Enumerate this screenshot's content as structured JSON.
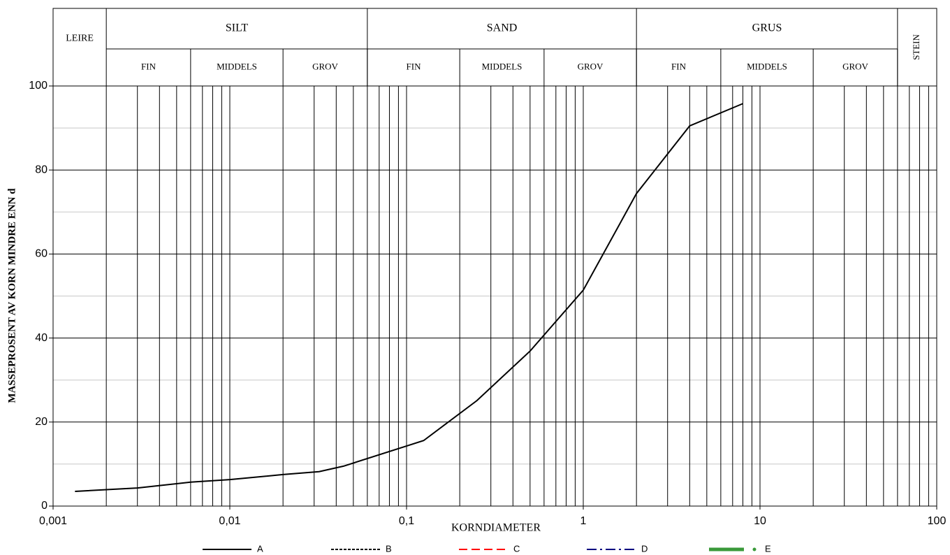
{
  "chart_data": {
    "type": "line",
    "y_label": "MASSEPROSENT AV KORN MINDRE ENN d",
    "x_label": "KORNDIAMETER",
    "log_x": true,
    "xlim": [
      0.001,
      100
    ],
    "xticks": [
      {
        "value": 0.001,
        "label": "0,001"
      },
      {
        "value": 0.01,
        "label": "0,01"
      },
      {
        "value": 0.1,
        "label": "0,1"
      },
      1,
      10,
      100
    ],
    "ylim": [
      0,
      100
    ],
    "yticks": [
      0,
      20,
      40,
      60,
      80,
      100
    ],
    "grid": true,
    "legend": "bottom",
    "classes": [
      {
        "name": "LEIRE",
        "from": 0.001,
        "to": 0.002,
        "sub": []
      },
      {
        "name": "SILT",
        "from": 0.002,
        "to": 0.06,
        "sub": [
          {
            "name": "FIN",
            "to": 0.006
          },
          {
            "name": "MIDDELS",
            "to": 0.02
          },
          {
            "name": "GROV",
            "to": 0.06
          }
        ]
      },
      {
        "name": "SAND",
        "from": 0.06,
        "to": 2,
        "sub": [
          {
            "name": "FIN",
            "to": 0.2
          },
          {
            "name": "MIDDELS",
            "to": 0.6
          },
          {
            "name": "GROV",
            "to": 2
          }
        ]
      },
      {
        "name": "GRUS",
        "from": 2,
        "to": 60,
        "sub": [
          {
            "name": "FIN",
            "to": 6
          },
          {
            "name": "MIDDELS",
            "to": 20
          },
          {
            "name": "GROV",
            "to": 60
          }
        ]
      },
      {
        "name": "STEIN",
        "from": 60,
        "to": 100,
        "sub": []
      }
    ],
    "series": [
      {
        "name": "A",
        "color": "#000000",
        "dash": "solid",
        "width": 2,
        "x": [
          0.00133,
          0.003,
          0.006,
          0.01,
          0.02,
          0.032,
          0.044,
          0.125,
          0.25,
          0.5,
          1,
          2,
          4,
          8
        ],
        "values": [
          3.5,
          4.3,
          5.7,
          6.3,
          7.5,
          8.2,
          9.5,
          15.6,
          25.1,
          36.9,
          51.4,
          74.4,
          90.5,
          95.8
        ]
      },
      {
        "name": "B",
        "color": "#000000",
        "dash": "dashed",
        "width": 2,
        "x": [],
        "values": []
      },
      {
        "name": "C",
        "color": "#ff0000",
        "dash": "longdash",
        "width": 2,
        "x": [],
        "values": []
      },
      {
        "name": "D",
        "color": "#000080",
        "dash": "dashdot",
        "width": 2,
        "x": [],
        "values": []
      },
      {
        "name": "E",
        "color": "#3a9a3a",
        "dash": "thickdot",
        "width": 5,
        "x": [],
        "values": []
      }
    ]
  }
}
